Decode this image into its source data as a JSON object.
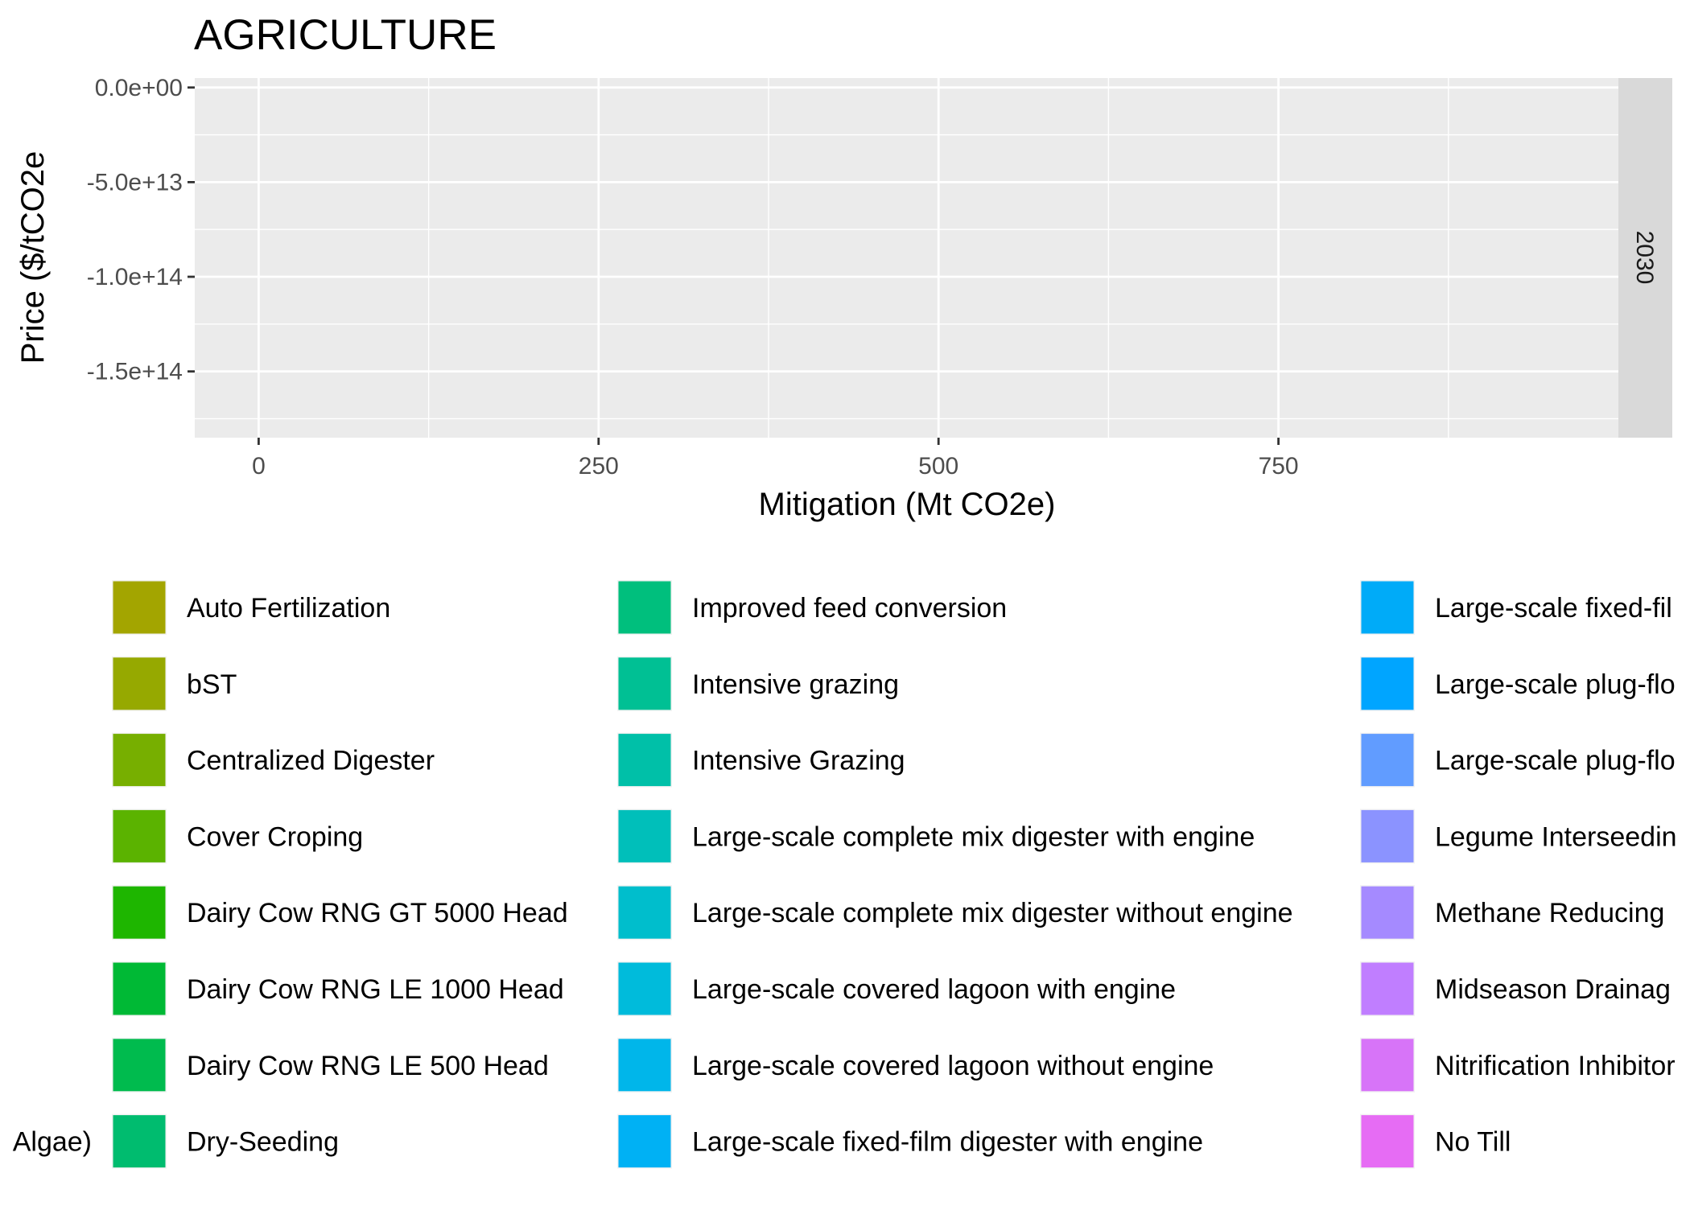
{
  "chart_data": {
    "type": "bar",
    "title": "AGRICULTURE",
    "xlabel": "Mitigation (Mt CO2e)",
    "ylabel": "Price ($/tCO2e",
    "xlim": [
      -47,
      1000
    ],
    "ylim": [
      -185000000000000.0,
      5000000000000.0
    ],
    "x_ticks": [
      {
        "value": 0,
        "label": "0"
      },
      {
        "value": 250,
        "label": "250"
      },
      {
        "value": 500,
        "label": "500"
      },
      {
        "value": 750,
        "label": "750"
      }
    ],
    "y_ticks": [
      {
        "value": 0,
        "label": "0.0e+00"
      },
      {
        "value": -50000000000000.0,
        "label": "-5.0e+13"
      },
      {
        "value": -100000000000000.0,
        "label": "-1.0e+14"
      },
      {
        "value": -150000000000000.0,
        "label": "-1.5e+14"
      }
    ],
    "facet_label": "2030",
    "grid": true,
    "legend_position": "bottom",
    "legend_entries": [
      {
        "label": "Algae)",
        "color": null
      },
      {
        "label": "Auto Fertilization",
        "color": "#A3A500"
      },
      {
        "label": "bST",
        "color": "#96A900"
      },
      {
        "label": "Centralized Digester",
        "color": "#77AF00"
      },
      {
        "label": "Cover Croping",
        "color": "#5BB300"
      },
      {
        "label": "Dairy Cow RNG GT 5000 Head",
        "color": "#1EB600"
      },
      {
        "label": "Dairy Cow RNG LE 1000 Head",
        "color": "#00B935"
      },
      {
        "label": "Dairy Cow RNG LE 500 Head",
        "color": "#00BB4E"
      },
      {
        "label": "Dry-Seeding",
        "color": "#00BC6F"
      },
      {
        "label": "Improved feed conversion",
        "color": "#00BF7D"
      },
      {
        "label": "Intensive grazing",
        "color": "#00C094"
      },
      {
        "label": "Intensive Grazing",
        "color": "#00C0A8"
      },
      {
        "label": "Large-scale complete mix digester with engine",
        "color": "#00BFBA"
      },
      {
        "label": "Large-scale complete mix digester without engine",
        "color": "#00BECC"
      },
      {
        "label": "Large-scale covered lagoon with engine",
        "color": "#00BBDB"
      },
      {
        "label": "Large-scale covered lagoon without engine",
        "color": "#00B6EA"
      },
      {
        "label": "Large-scale fixed-film digester with engine",
        "color": "#00B1F4"
      },
      {
        "label": "Large-scale fixed-fil",
        "color": "#00ABF8"
      },
      {
        "label": "Large-scale plug-flo",
        "color": "#00A5FF"
      },
      {
        "label": "Large-scale plug-flo",
        "color": "#619CFF"
      },
      {
        "label": "Legume Interseedin",
        "color": "#8B93FF"
      },
      {
        "label": "Methane Reducing",
        "color": "#A58AFF"
      },
      {
        "label": "Midseason Drainag",
        "color": "#C07EFF"
      },
      {
        "label": "Nitrification Inhibitor",
        "color": "#D774F8"
      },
      {
        "label": "No Till",
        "color": "#E66CF4"
      }
    ]
  }
}
